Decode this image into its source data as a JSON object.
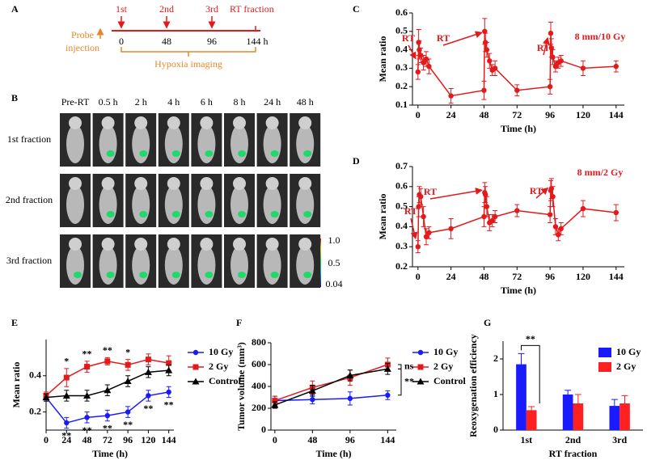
{
  "panel_a": {
    "label": "A",
    "fractions": [
      "1st",
      "2nd",
      "3rd"
    ],
    "rt_fraction": "RT fraction",
    "times": [
      "0",
      "48",
      "96",
      "144 h"
    ],
    "probe_injection": [
      "Probe",
      "injection"
    ],
    "hypoxia_imaging": "Hypoxia imaging"
  },
  "panel_b": {
    "label": "B",
    "columns": [
      "Pre-RT",
      "0.5 h",
      "2 h",
      "4 h",
      "6 h",
      "8 h",
      "24 h",
      "48 h"
    ],
    "rows": [
      "1st fraction",
      "2nd fraction",
      "3rd fraction"
    ],
    "colorbar_labels": [
      "1.0",
      "0.5",
      "0.04"
    ]
  },
  "chart_data": [
    {
      "type": "line",
      "label": "C",
      "x_label": "Time (h)",
      "y_label": "Mean ratio",
      "annotation": "8 mm/10 Gy",
      "rt_labels": [
        "RT",
        "RT",
        "RT"
      ],
      "xlim": [
        -4,
        150
      ],
      "xticks": [
        0,
        24,
        48,
        72,
        96,
        120,
        144
      ],
      "ylim": [
        0.1,
        0.6
      ],
      "yticks": [
        0.1,
        0.2,
        0.3,
        0.4,
        0.5,
        0.6
      ],
      "x": [
        0,
        0.5,
        1,
        2,
        4,
        6,
        8,
        24,
        48,
        48.5,
        49,
        50,
        52,
        54,
        56,
        72,
        96,
        96.5,
        97,
        98,
        100,
        102,
        104,
        120,
        144
      ],
      "series": [
        {
          "color": "#e31a1c",
          "marker": "circle",
          "values": [
            0.28,
            0.44,
            0.4,
            0.37,
            0.33,
            0.35,
            0.31,
            0.15,
            0.18,
            0.5,
            0.44,
            0.4,
            0.34,
            0.29,
            0.3,
            0.18,
            0.2,
            0.49,
            0.41,
            0.36,
            0.31,
            0.33,
            0.34,
            0.3,
            0.31
          ],
          "errors": [
            0.04,
            0.07,
            0.05,
            0.04,
            0.04,
            0.04,
            0.04,
            0.04,
            0.05,
            0.07,
            0.05,
            0.04,
            0.04,
            0.03,
            0.04,
            0.03,
            0.04,
            0.06,
            0.05,
            0.04,
            0.03,
            0.03,
            0.03,
            0.04,
            0.03
          ]
        }
      ]
    },
    {
      "type": "line",
      "label": "D",
      "x_label": "Time (h)",
      "y_label": "Mean ratio",
      "annotation": "8 mm/2 Gy",
      "rt_labels": [
        "RT",
        "RT",
        "RT"
      ],
      "xlim": [
        -4,
        150
      ],
      "xticks": [
        0,
        24,
        48,
        72,
        96,
        120,
        144
      ],
      "ylim": [
        0.2,
        0.7
      ],
      "yticks": [
        0.2,
        0.3,
        0.4,
        0.5,
        0.6,
        0.7
      ],
      "x": [
        0,
        0.5,
        1,
        2,
        4,
        6,
        8,
        24,
        48,
        48.5,
        49,
        50,
        52,
        54,
        56,
        72,
        96,
        96.5,
        97,
        98,
        100,
        102,
        104,
        120,
        144
      ],
      "series": [
        {
          "color": "#e31a1c",
          "marker": "circle",
          "values": [
            0.3,
            0.5,
            0.56,
            0.55,
            0.45,
            0.35,
            0.37,
            0.39,
            0.45,
            0.57,
            0.56,
            0.5,
            0.42,
            0.43,
            0.45,
            0.48,
            0.46,
            0.58,
            0.59,
            0.55,
            0.4,
            0.36,
            0.39,
            0.49,
            0.47
          ],
          "errors": [
            0.03,
            0.05,
            0.04,
            0.04,
            0.05,
            0.04,
            0.03,
            0.05,
            0.05,
            0.05,
            0.04,
            0.05,
            0.04,
            0.03,
            0.03,
            0.03,
            0.04,
            0.05,
            0.05,
            0.05,
            0.04,
            0.03,
            0.03,
            0.04,
            0.04
          ]
        }
      ]
    },
    {
      "type": "line",
      "label": "E",
      "x_label": "Time (h)",
      "y_label": "Mean ratio",
      "xlim": [
        0,
        150
      ],
      "xticks": [
        0,
        24,
        48,
        72,
        96,
        120,
        144
      ],
      "ylim": [
        0.1,
        0.6
      ],
      "yticks": [
        0.2,
        0.4
      ],
      "x": [
        0,
        24,
        48,
        72,
        96,
        120,
        144
      ],
      "series": [
        {
          "name": "10 Gy",
          "color": "#1a1aff",
          "marker": "circle",
          "values": [
            0.28,
            0.14,
            0.17,
            0.18,
            0.2,
            0.29,
            0.31
          ],
          "errors": [
            0.02,
            0.03,
            0.03,
            0.03,
            0.03,
            0.03,
            0.03
          ]
        },
        {
          "name": "2 Gy",
          "color": "#e31a1c",
          "marker": "square",
          "values": [
            0.29,
            0.39,
            0.45,
            0.48,
            0.46,
            0.49,
            0.47
          ],
          "errors": [
            0.02,
            0.05,
            0.03,
            0.02,
            0.03,
            0.03,
            0.04
          ]
        },
        {
          "name": "Control",
          "color": "#000000",
          "marker": "triangle",
          "values": [
            0.28,
            0.29,
            0.29,
            0.32,
            0.37,
            0.42,
            0.43
          ],
          "errors": [
            0.02,
            0.03,
            0.03,
            0.03,
            0.03,
            0.03,
            0.03
          ]
        }
      ],
      "annotations_top": [
        null,
        "*",
        "**",
        "**",
        "*",
        null,
        null
      ],
      "annotations_bottom": [
        null,
        "**",
        "**",
        "**",
        "**",
        "**",
        "**"
      ]
    },
    {
      "type": "line",
      "label": "F",
      "x_label": "Time (h)",
      "y_label": "Tumor volume (mm³)",
      "xlim": [
        -5,
        155
      ],
      "xticks": [
        0,
        48,
        96,
        144
      ],
      "ylim": [
        0,
        800
      ],
      "yticks": [
        0,
        200,
        400,
        600,
        800
      ],
      "x": [
        0,
        48,
        96,
        144
      ],
      "series": [
        {
          "name": "10 Gy",
          "color": "#1a1aff",
          "marker": "circle",
          "values": [
            270,
            280,
            290,
            320
          ],
          "errors": [
            40,
            40,
            60,
            40
          ]
        },
        {
          "name": "2 Gy",
          "color": "#e31a1c",
          "marker": "square",
          "values": [
            270,
            390,
            480,
            600
          ],
          "errors": [
            40,
            60,
            70,
            60
          ]
        },
        {
          "name": "Control",
          "color": "#000000",
          "marker": "triangle",
          "values": [
            230,
            360,
            500,
            560
          ],
          "errors": [
            30,
            50,
            50,
            50
          ]
        }
      ],
      "annotations": [
        "ns",
        "**"
      ]
    },
    {
      "type": "bar",
      "label": "G",
      "x_label": "RT fraction",
      "y_label": "Reoxygenation efficiency",
      "categories": [
        "1st",
        "2nd",
        "3rd"
      ],
      "ylim": [
        0,
        2.5
      ],
      "yticks": [
        0,
        1,
        2
      ],
      "series": [
        {
          "name": "10 Gy",
          "color": "#1a1aff",
          "values": [
            1.85,
            1.0,
            0.68
          ],
          "errors": [
            0.3,
            0.12,
            0.18
          ]
        },
        {
          "name": "2 Gy",
          "color": "#ff2020",
          "values": [
            0.56,
            0.75,
            0.75
          ],
          "errors": [
            0.1,
            0.25,
            0.22
          ]
        }
      ],
      "annotation": "**"
    }
  ]
}
